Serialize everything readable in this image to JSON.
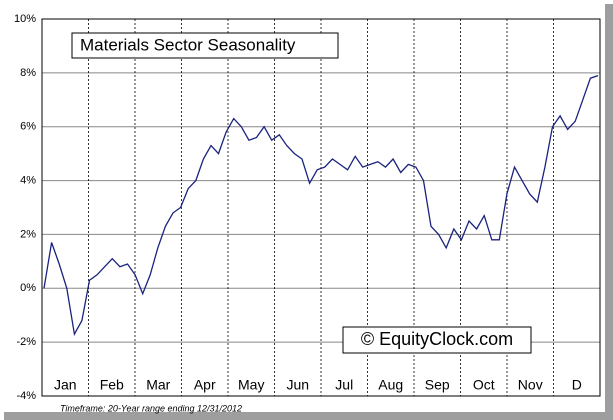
{
  "chart_data": {
    "type": "line",
    "title": "Materials Sector Seasonality",
    "watermark": "© EquityClock.com",
    "footnote": "Timeframe: 20-Year range ending 12/31/2012",
    "x_tick_labels": [
      "Jan",
      "Feb",
      "Mar",
      "Apr",
      "May",
      "Jun",
      "Jul",
      "Aug",
      "Sep",
      "Oct",
      "Nov",
      "D"
    ],
    "ylim": [
      -4,
      10
    ],
    "yticks": [
      {
        "value": -4,
        "label": "-4%"
      },
      {
        "value": -2,
        "label": "-2%"
      },
      {
        "value": 0,
        "label": "0%"
      },
      {
        "value": 2,
        "label": "2%"
      },
      {
        "value": 4,
        "label": "4%"
      },
      {
        "value": 6,
        "label": "6%"
      },
      {
        "value": 8,
        "label": "8%"
      },
      {
        "value": 10,
        "label": "10%"
      }
    ],
    "grid": true,
    "series": [
      {
        "color": "#1a237e",
        "values": [
          0,
          1.7,
          0.9,
          0,
          -1.7,
          -1.2,
          0.3,
          0.5,
          0.8,
          1.1,
          0.8,
          0.9,
          0.5,
          -0.2,
          0.5,
          1.5,
          2.3,
          2.8,
          3.0,
          3.7,
          4.0,
          4.8,
          5.3,
          5.0,
          5.8,
          6.3,
          6.0,
          5.5,
          5.6,
          6.0,
          5.5,
          5.7,
          5.3,
          5.0,
          4.8,
          3.9,
          4.4,
          4.5,
          4.8,
          4.6,
          4.4,
          4.9,
          4.5,
          4.6,
          4.7,
          4.5,
          4.8,
          4.3,
          4.6,
          4.5,
          4.0,
          2.3,
          2.0,
          1.5,
          2.2,
          1.8,
          2.5,
          2.2,
          2.7,
          1.8,
          1.8,
          3.5,
          4.5,
          4.0,
          3.5,
          3.2,
          4.5,
          6.0,
          6.4,
          5.9,
          6.2,
          7.0,
          7.8,
          7.9
        ]
      }
    ]
  }
}
